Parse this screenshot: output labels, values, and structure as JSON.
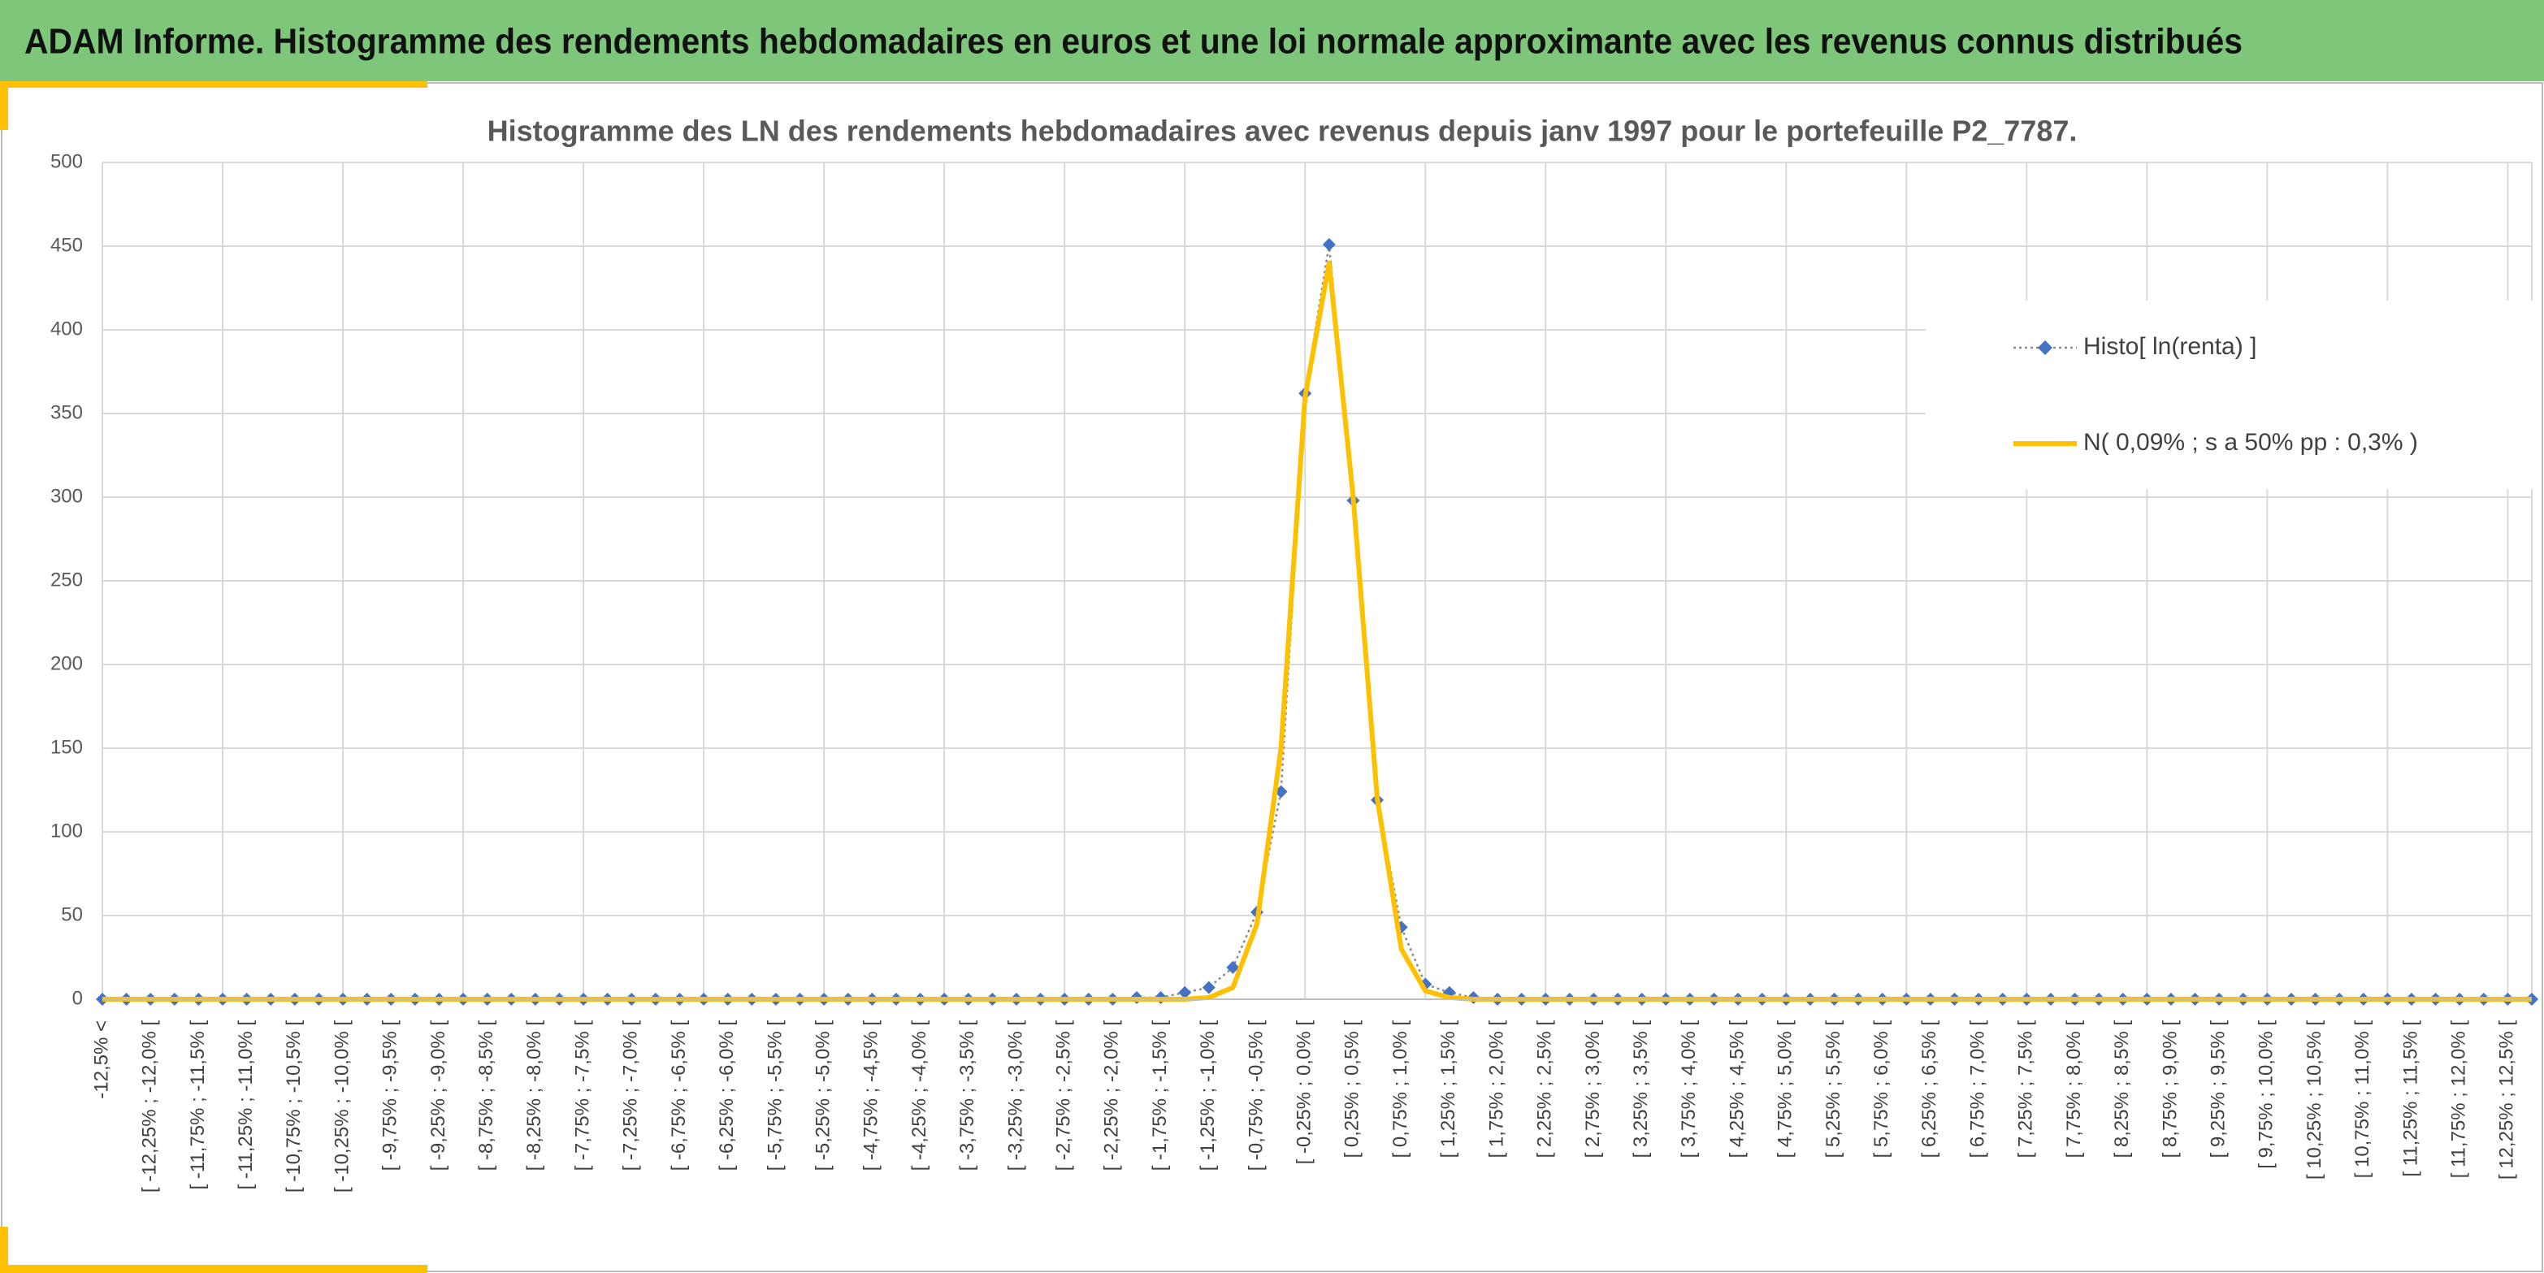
{
  "header": {
    "title": "ADAM Informe. Histogramme des rendements hebdomadaires en euros et une loi normale approximante avec les revenus connus distribués"
  },
  "chart_data": {
    "type": "line",
    "title": "Histogramme des LN des rendements hebdomadaires avec revenus depuis janv 1997 pour le portefeuille P2_7787.",
    "categories": [
      "-12,5% <",
      null,
      "[ -12,25% ; -12,0% [",
      null,
      "[ -11,75% ; -11,5% [",
      null,
      "[ -11,25% ; -11,0% [",
      null,
      "[ -10,75% ; -10,5% [",
      null,
      "[ -10,25% ; -10,0% [",
      null,
      "[ -9,75% ; -9,5% [",
      null,
      "[ -9,25% ; -9,0% [",
      null,
      "[ -8,75% ; -8,5% [",
      null,
      "[ -8,25% ; -8,0% [",
      null,
      "[ -7,75% ; -7,5% [",
      null,
      "[ -7,25% ; -7,0% [",
      null,
      "[ -6,75% ; -6,5% [",
      null,
      "[ -6,25% ; -6,0% [",
      null,
      "[ -5,75% ; -5,5% [",
      null,
      "[ -5,25% ; -5,0% [",
      null,
      "[ -4,75% ; -4,5% [",
      null,
      "[ -4,25% ; -4,0% [",
      null,
      "[ -3,75% ; -3,5% [",
      null,
      "[ -3,25% ; -3,0% [",
      null,
      "[ -2,75% ; -2,5% [",
      null,
      "[ -2,25% ; -2,0% [",
      null,
      "[ -1,75% ; -1,5% [",
      null,
      "[ -1,25% ; -1,0% [",
      null,
      "[ -0,75% ; -0,5% [",
      null,
      "[ -0,25% ; 0,0% [",
      null,
      "[ 0,25% ; 0,5% [",
      null,
      "[ 0,75% ; 1,0% [",
      null,
      "[ 1,25% ; 1,5% [",
      null,
      "[ 1,75% ; 2,0% [",
      null,
      "[ 2,25% ; 2,5% [",
      null,
      "[ 2,75% ; 3,0% [",
      null,
      "[ 3,25% ; 3,5% [",
      null,
      "[ 3,75% ; 4,0% [",
      null,
      "[ 4,25% ; 4,5% [",
      null,
      "[ 4,75% ; 5,0% [",
      null,
      "[ 5,25% ; 5,5% [",
      null,
      "[ 5,75% ; 6,0% [",
      null,
      "[ 6,25% ; 6,5% [",
      null,
      "[ 6,75% ; 7,0% [",
      null,
      "[ 7,25% ; 7,5% [",
      null,
      "[ 7,75% ; 8,0% [",
      null,
      "[ 8,25% ; 8,5% [",
      null,
      "[ 8,75% ; 9,0% [",
      null,
      "[ 9,25% ; 9,5% [",
      null,
      "[ 9,75% ; 10,0% [",
      null,
      "[ 10,25% ; 10,5% [",
      null,
      "[ 10,75% ; 11,0% [",
      null,
      "[ 11,25% ; 11,5% [",
      null,
      "[ 11,75% ; 12,0% [",
      null,
      "[ 12,25% ; 12,5% [",
      null
    ],
    "series": [
      {
        "name": "Histo[ ln(renta) ]",
        "color": "#4472c4",
        "values": [
          0,
          0,
          0,
          0,
          0,
          0,
          0,
          0,
          0,
          0,
          0,
          0,
          0,
          0,
          0,
          0,
          0,
          0,
          0,
          0,
          0,
          0,
          0,
          0,
          0,
          0,
          0,
          0,
          0,
          0,
          0,
          0,
          0,
          0,
          0,
          0,
          0,
          0,
          0,
          0,
          0,
          0,
          0,
          1,
          1,
          4,
          7,
          19,
          52,
          124,
          362,
          451,
          298,
          119,
          43,
          9,
          4,
          1,
          0,
          0,
          0,
          0,
          0,
          0,
          0,
          0,
          0,
          0,
          0,
          0,
          0,
          0,
          0,
          0,
          0,
          0,
          0,
          0,
          0,
          0,
          0,
          0,
          0,
          0,
          0,
          0,
          0,
          0,
          0,
          0,
          0,
          0,
          0,
          0,
          0,
          0,
          0,
          0,
          0,
          0,
          0,
          0
        ]
      },
      {
        "name": "N( 0,09% ; s a 50% pp : 0,3% )",
        "color": "#ffc000",
        "values": [
          0,
          0,
          0,
          0,
          0,
          0,
          0,
          0,
          0,
          0,
          0,
          0,
          0,
          0,
          0,
          0,
          0,
          0,
          0,
          0,
          0,
          0,
          0,
          0,
          0,
          0,
          0,
          0,
          0,
          0,
          0,
          0,
          0,
          0,
          0,
          0,
          0,
          0,
          0,
          0,
          0,
          0,
          0,
          0,
          0,
          0,
          1,
          7,
          45,
          150,
          360,
          440,
          300,
          120,
          30,
          5,
          1,
          0,
          0,
          0,
          0,
          0,
          0,
          0,
          0,
          0,
          0,
          0,
          0,
          0,
          0,
          0,
          0,
          0,
          0,
          0,
          0,
          0,
          0,
          0,
          0,
          0,
          0,
          0,
          0,
          0,
          0,
          0,
          0,
          0,
          0,
          0,
          0,
          0,
          0,
          0,
          0,
          0,
          0,
          0,
          0,
          0
        ]
      }
    ],
    "ylim": [
      0,
      500
    ],
    "yticks": [
      0,
      50,
      100,
      150,
      200,
      250,
      300,
      350,
      400,
      450,
      500
    ],
    "grid": true,
    "legend": "right"
  }
}
